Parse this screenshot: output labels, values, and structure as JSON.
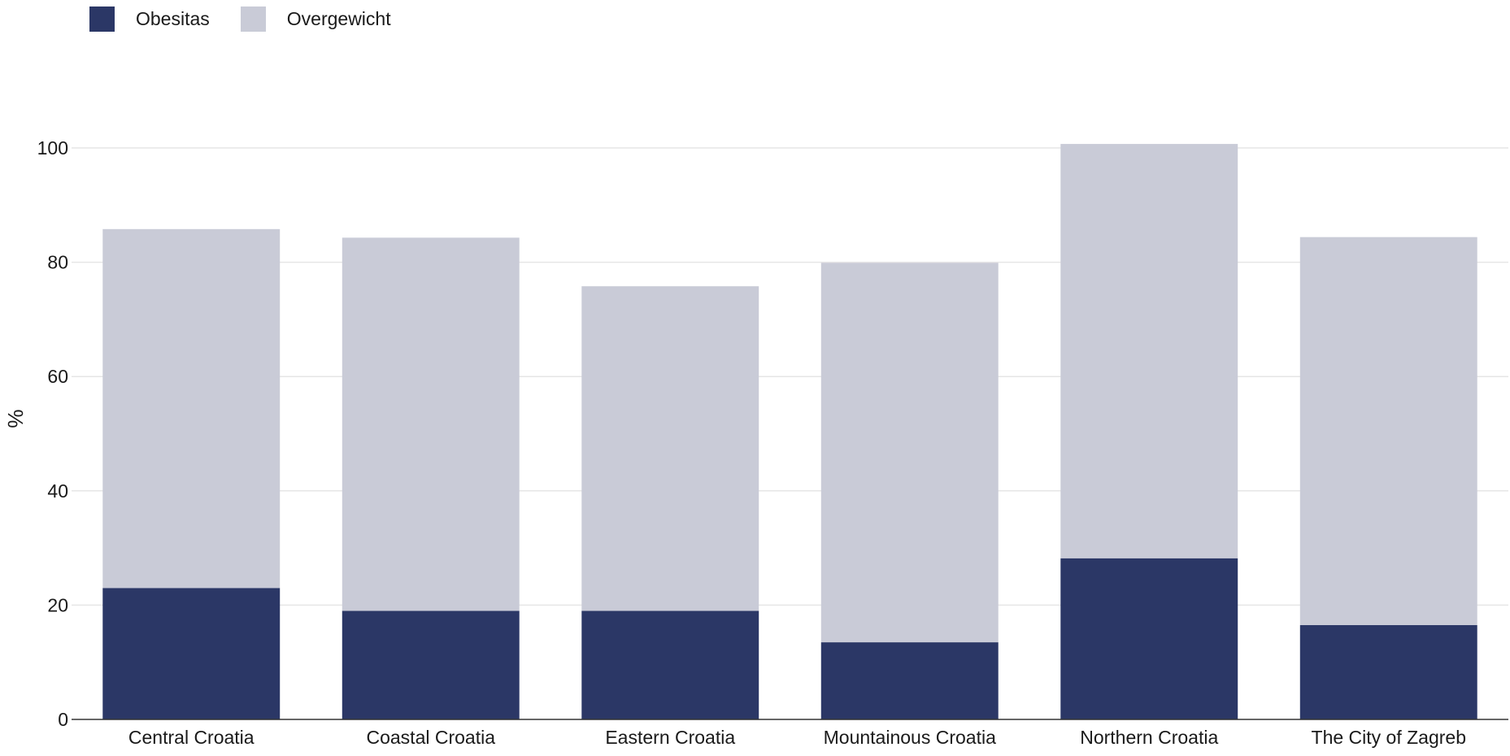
{
  "chart_data": {
    "type": "bar",
    "stacked": true,
    "categories": [
      "Central Croatia",
      "Coastal Croatia",
      "Eastern Croatia",
      "Mountainous Croatia",
      "Northern Croatia",
      "The City of Zagreb"
    ],
    "series": [
      {
        "name": "Obesitas",
        "color": "#2b3766",
        "values": [
          23,
          19,
          19,
          13.5,
          28.2,
          16.5
        ]
      },
      {
        "name": "Overgewicht",
        "color": "#c9cbd7",
        "values": [
          62.8,
          65.3,
          56.8,
          66.4,
          72.5,
          67.9
        ]
      }
    ],
    "ylabel": "%",
    "ylim": [
      0,
      100
    ],
    "yticks": [
      0,
      20,
      40,
      60,
      80,
      100
    ],
    "grid": true,
    "legend_position": "top-left"
  }
}
